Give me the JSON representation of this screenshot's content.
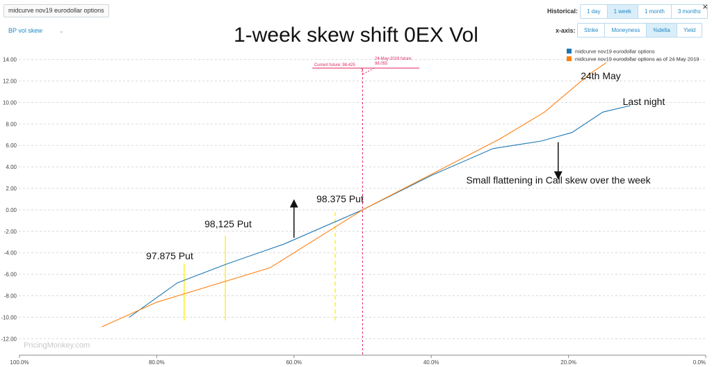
{
  "toolbar": {
    "chip_label": "midcurve nov19 eurodollar options",
    "dropdown_label": "BP vol skew",
    "historical_label": "Historical:",
    "historical_options": [
      "1 day",
      "1 week",
      "1 month",
      "3 months"
    ],
    "historical_selected": "1 week",
    "xaxis_label": "x-axis:",
    "xaxis_options": [
      "Strike",
      "Moneyness",
      "%delta",
      "Yield"
    ],
    "xaxis_selected": "%delta",
    "close_glyph": "×"
  },
  "watermark": "PricingMonkey.com",
  "chart_data": {
    "type": "line",
    "title": "1-week skew shift 0EX Vol",
    "x_axis": {
      "min": 0,
      "max": 100,
      "reversed": true,
      "ticks": [
        100,
        80,
        60,
        40,
        20,
        0
      ],
      "tick_labels": [
        "100.0%",
        "80.0%",
        "60.0%",
        "40.0%",
        "20.0%",
        "0.0%"
      ]
    },
    "y_axis": {
      "min": -13,
      "max": 15,
      "ticks": [
        14,
        12,
        10,
        8,
        6,
        4,
        2,
        0,
        -2,
        -4,
        -6,
        -8,
        -10,
        -12
      ],
      "tick_labels": [
        "14.00",
        "12.00",
        "10.00",
        "8.00",
        "6.00",
        "4.00",
        "2.00",
        "0.00",
        "-2.00",
        "-4.00",
        "-6.00",
        "-8.00",
        "-10.00",
        "-12.00"
      ]
    },
    "grid": "horizontal dashed",
    "legend_position": "top-right",
    "series": [
      {
        "name": "midcurve nov19 eurodollar options",
        "color": "#1f77b4",
        "points": [
          [
            84,
            -10
          ],
          [
            77,
            -6.8
          ],
          [
            69.6,
            -5
          ],
          [
            61.5,
            -3.2
          ],
          [
            50,
            0
          ],
          [
            40,
            3.2
          ],
          [
            31,
            5.7
          ],
          [
            24,
            6.4
          ],
          [
            19.5,
            7.2
          ],
          [
            15,
            9.1
          ],
          [
            11,
            9.7
          ]
        ]
      },
      {
        "name": "midcurve nov19 eurodollar options as of 24 May 2019",
        "color": "#ff7f0e",
        "points": [
          [
            88,
            -10.9
          ],
          [
            80,
            -8.6
          ],
          [
            63.5,
            -5.4
          ],
          [
            50,
            0
          ],
          [
            30,
            6.6
          ],
          [
            23.5,
            9.1
          ],
          [
            17,
            12.6
          ],
          [
            14.5,
            13.7
          ]
        ]
      }
    ],
    "reference_line": {
      "x": 50,
      "color": "#e0245e",
      "label_current": "Current future: 98.425",
      "label_past": "24-May-2019 future: 98.055"
    },
    "strike_markers": [
      {
        "label": "97.875 Put",
        "x": 76,
        "y_from": -10.3,
        "y_to": -5,
        "dashed": false
      },
      {
        "label": "98,125 Put",
        "x": 70,
        "y_from": -10.3,
        "y_to": -2.4,
        "dashed": false
      },
      {
        "label": "98.375 Put",
        "x": 54,
        "y_from": -10.3,
        "y_to": 0,
        "dashed": true
      }
    ],
    "annotations": [
      {
        "text": "24th May",
        "x": 19.5,
        "y": 12.4
      },
      {
        "text": "Last night",
        "x": 10.5,
        "y": 10
      },
      {
        "text": "Small flattening in Call skew over the week",
        "x": 17.5,
        "y": 2.8
      }
    ],
    "arrows": [
      {
        "direction": "up",
        "x": 60,
        "y_from": -2.6,
        "y_to": 0.6
      },
      {
        "direction": "down",
        "x": 21.5,
        "y_from": 6.3,
        "y_to": 3.2
      }
    ]
  }
}
